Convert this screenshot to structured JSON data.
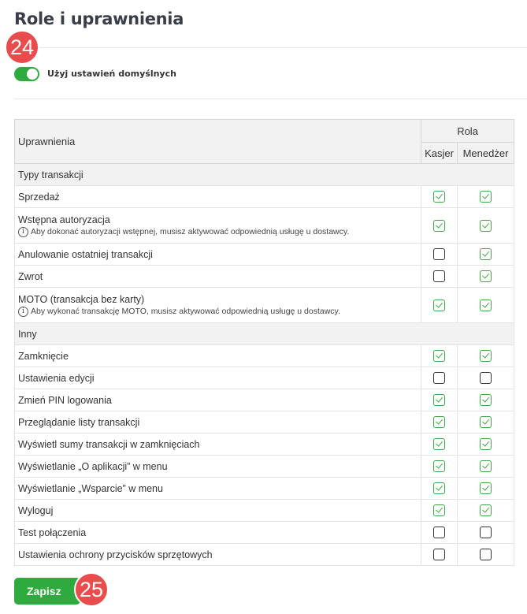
{
  "page": {
    "title": "Role i uprawnienia"
  },
  "badges": {
    "first": "24",
    "second": "25"
  },
  "toggle": {
    "label": "Użyj ustawień domyślnych",
    "on": true
  },
  "accent": "#2eaa3f",
  "table": {
    "header_permissions": "Uprawnienia",
    "header_role": "Rola",
    "roles": [
      "Kasjer",
      "Menedżer"
    ],
    "sections": [
      {
        "title": "Typy transakcji",
        "rows": [
          {
            "label": "Sprzedaż",
            "checks": [
              true,
              true
            ]
          },
          {
            "label": "Wstępna autoryzacja",
            "note": "Aby dokonać autoryzacji wstępnej, musisz aktywować odpowiednią usługę u dostawcy.",
            "checks": [
              true,
              true
            ]
          },
          {
            "label": "Anulowanie ostatniej transakcji",
            "checks": [
              false,
              true
            ]
          },
          {
            "label": "Zwrot",
            "checks": [
              false,
              true
            ]
          },
          {
            "label": "MOTO (transakcja bez karty)",
            "note": "Aby wykonać transakcję MOTO, musisz aktywować odpowiednią usługę u dostawcy.",
            "checks": [
              true,
              true
            ]
          }
        ]
      },
      {
        "title": "Inny",
        "rows": [
          {
            "label": "Zamknięcie",
            "checks": [
              true,
              true
            ]
          },
          {
            "label": "Ustawienia edycji",
            "checks": [
              false,
              false
            ]
          },
          {
            "label": "Zmień PIN logowania",
            "checks": [
              true,
              true
            ]
          },
          {
            "label": "Przeglądanie listy transakcji",
            "checks": [
              true,
              true
            ]
          },
          {
            "label": "Wyświetl sumy transakcji w zamknięciach",
            "checks": [
              true,
              true
            ]
          },
          {
            "label": "Wyświetlanie „O aplikacji” w menu",
            "checks": [
              true,
              true
            ]
          },
          {
            "label": "Wyświetlanie „Wsparcie” w menu",
            "checks": [
              true,
              true
            ]
          },
          {
            "label": "Wyloguj",
            "checks": [
              true,
              true
            ]
          },
          {
            "label": "Test połączenia",
            "checks": [
              false,
              false
            ]
          },
          {
            "label": "Ustawienia ochrony przycisków sprzętowych",
            "checks": [
              false,
              false
            ]
          }
        ]
      }
    ]
  },
  "save_label": "Zapisz"
}
